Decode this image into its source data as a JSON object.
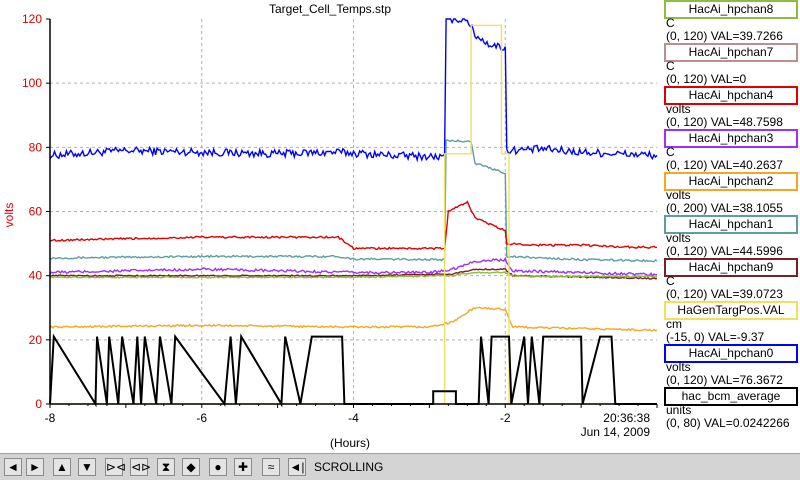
{
  "chart_data": {
    "type": "line",
    "title": "Target_Cell_Temps.stp",
    "xlabel": "(Hours)",
    "ylabel": "volts",
    "xlim": [
      -8,
      0
    ],
    "ylim": [
      0,
      120
    ],
    "x_ticks": [
      "-8",
      "-6",
      "-4",
      "-2"
    ],
    "y_ticks": [
      "0",
      "20",
      "40",
      "60",
      "80",
      "100",
      "120"
    ],
    "timestamp": "20:36:38",
    "date": "Jun 14, 2009",
    "grid": true,
    "series": [
      {
        "name": "HacAi_hpchan0",
        "color": "#0000ff",
        "noise": 1.2,
        "points": [
          [
            -8,
            77.5
          ],
          [
            -7,
            79
          ],
          [
            -6,
            78.5
          ],
          [
            -5,
            78
          ],
          [
            -4.2,
            78.5
          ],
          [
            -3.5,
            77.5
          ],
          [
            -2.8,
            77
          ],
          [
            -2.78,
            120
          ],
          [
            -2.5,
            120
          ],
          [
            -2.4,
            115
          ],
          [
            -2.2,
            112
          ],
          [
            -2.0,
            111
          ],
          [
            -1.98,
            79
          ],
          [
            -1.5,
            79.5
          ],
          [
            -1,
            78.5
          ],
          [
            -0.5,
            78
          ],
          [
            0,
            77.5
          ]
        ]
      },
      {
        "name": "HacAi_hpchan1",
        "color": "#5f9ea0",
        "noise": 0.3,
        "points": [
          [
            -8,
            45.5
          ],
          [
            -6,
            46
          ],
          [
            -4.2,
            46
          ],
          [
            -4.0,
            45.2
          ],
          [
            -2.8,
            45
          ],
          [
            -2.78,
            82
          ],
          [
            -2.45,
            82
          ],
          [
            -2.4,
            75
          ],
          [
            -2.0,
            72
          ],
          [
            -1.98,
            46
          ],
          [
            -1.5,
            45.5
          ],
          [
            -1,
            45
          ],
          [
            0,
            44.6
          ]
        ]
      },
      {
        "name": "HacAi_hpchan2",
        "color": "#f5a623",
        "noise": 0.3,
        "points": [
          [
            -8,
            24
          ],
          [
            -6,
            24.5
          ],
          [
            -4,
            24
          ],
          [
            -3,
            24
          ],
          [
            -2.7,
            25.5
          ],
          [
            -2.4,
            30
          ],
          [
            -2.0,
            29.5
          ],
          [
            -1.9,
            24
          ],
          [
            -1,
            23.5
          ],
          [
            0,
            23
          ]
        ]
      },
      {
        "name": "HacAi_hpchan3",
        "color": "#9b30ff",
        "noise": 0.4,
        "points": [
          [
            -8,
            41
          ],
          [
            -6,
            42
          ],
          [
            -4,
            41
          ],
          [
            -3,
            41
          ],
          [
            -2.7,
            42
          ],
          [
            -2.4,
            44.5
          ],
          [
            -2.0,
            45
          ],
          [
            -1.9,
            41.5
          ],
          [
            -1,
            41
          ],
          [
            0,
            40.3
          ]
        ]
      },
      {
        "name": "HacAi_hpchan4",
        "color": "#e00000",
        "noise": 0.3,
        "points": [
          [
            -8,
            51
          ],
          [
            -6,
            52
          ],
          [
            -4.2,
            52
          ],
          [
            -4.0,
            48.5
          ],
          [
            -2.8,
            48.5
          ],
          [
            -2.75,
            60
          ],
          [
            -2.5,
            63
          ],
          [
            -2.4,
            58
          ],
          [
            -2.1,
            55
          ],
          [
            -2.0,
            54
          ],
          [
            -1.98,
            50
          ],
          [
            -1.5,
            49.5
          ],
          [
            -1,
            49.5
          ],
          [
            -0.5,
            49
          ],
          [
            0,
            48.8
          ]
        ]
      },
      {
        "name": "HacAi_hpchan9",
        "color": "#7a2020",
        "noise": 0.2,
        "points": [
          [
            -8,
            40
          ],
          [
            -4,
            40
          ],
          [
            -2.7,
            40.5
          ],
          [
            -2.4,
            42
          ],
          [
            -2.0,
            42
          ],
          [
            -1.9,
            40
          ],
          [
            0,
            39.1
          ]
        ]
      },
      {
        "name": "HacAi_hpchan8",
        "color": "#8fbc3f",
        "noise": 0.2,
        "points": [
          [
            -8,
            39.5
          ],
          [
            -4,
            39.5
          ],
          [
            -2.7,
            40
          ],
          [
            -2.4,
            41
          ],
          [
            -2.0,
            41
          ],
          [
            -1.9,
            39.8
          ],
          [
            0,
            39.7
          ]
        ]
      },
      {
        "name": "HaGenTargPos.VAL",
        "color": "#f0e060",
        "noise": 0,
        "points": [
          [
            -8,
            0
          ],
          [
            -2.8,
            0
          ],
          [
            -2.8,
            78
          ],
          [
            -2.45,
            78
          ],
          [
            -2.45,
            118
          ],
          [
            -2.05,
            118
          ],
          [
            -2.05,
            78
          ],
          [
            -1.95,
            78
          ],
          [
            -1.95,
            0
          ],
          [
            0,
            0
          ]
        ]
      },
      {
        "name": "hac_bcm_average",
        "color": "#000000",
        "noise": 0,
        "steps": [
          [
            -8,
            0
          ],
          [
            -7.95,
            21
          ],
          [
            -7.4,
            0
          ],
          [
            -7.38,
            21
          ],
          [
            -7.25,
            0
          ],
          [
            -7.22,
            21
          ],
          [
            -7.1,
            0
          ],
          [
            -7.05,
            21
          ],
          [
            -6.9,
            0
          ],
          [
            -6.85,
            21
          ],
          [
            -6.8,
            0
          ],
          [
            -6.75,
            21
          ],
          [
            -6.6,
            0
          ],
          [
            -6.55,
            21
          ],
          [
            -6.4,
            0
          ],
          [
            -6.35,
            21
          ],
          [
            -5.7,
            0
          ],
          [
            -5.62,
            21
          ],
          [
            -5.55,
            0
          ],
          [
            -5.48,
            21
          ],
          [
            -4.95,
            0
          ],
          [
            -4.9,
            21
          ],
          [
            -4.7,
            0
          ],
          [
            -4.55,
            21
          ],
          [
            -4.15,
            21
          ],
          [
            -4.12,
            0
          ],
          [
            -2.95,
            0
          ],
          [
            -2.95,
            4
          ],
          [
            -2.65,
            4
          ],
          [
            -2.65,
            0
          ],
          [
            -2.35,
            0
          ],
          [
            -2.32,
            21
          ],
          [
            -2.22,
            0
          ],
          [
            -2.18,
            21
          ],
          [
            -1.95,
            21
          ],
          [
            -1.92,
            0
          ],
          [
            -1.75,
            21
          ],
          [
            -1.7,
            0
          ],
          [
            -1.65,
            21
          ],
          [
            -1.55,
            0
          ],
          [
            -1.5,
            21
          ],
          [
            -1.0,
            21
          ],
          [
            -0.98,
            0
          ],
          [
            -0.75,
            21
          ],
          [
            -0.6,
            21
          ],
          [
            -0.55,
            0
          ],
          [
            0,
            0
          ]
        ]
      }
    ]
  },
  "legend": [
    {
      "name": "HacAi_hpchan8",
      "color": "#8fbc3f",
      "unit": "C",
      "value": "(0, 120) VAL=39.7266"
    },
    {
      "name": "HacAi_hpchan7",
      "color": "#bc8f8f",
      "unit": "C",
      "value": "(0, 120) VAL=0"
    },
    {
      "name": "HacAi_hpchan4",
      "color": "#e00000",
      "unit": "volts",
      "value": "(0, 120) VAL=48.7598"
    },
    {
      "name": "HacAi_hpchan3",
      "color": "#9b30ff",
      "unit": "C",
      "value": "(0, 120) VAL=40.2637"
    },
    {
      "name": "HacAi_hpchan2",
      "color": "#f5a623",
      "unit": "volts",
      "value": "(0, 200) VAL=38.1055"
    },
    {
      "name": "HacAi_hpchan1",
      "color": "#5f9ea0",
      "unit": "volts",
      "value": "(0, 120) VAL=44.5996"
    },
    {
      "name": "HacAi_hpchan9",
      "color": "#7a2020",
      "unit": "C",
      "value": "(0, 120) VAL=39.0723"
    },
    {
      "name": "HaGenTargPos.VAL",
      "color": "#f0e060",
      "unit": "cm",
      "value": "(-15, 0) VAL=-9.37"
    },
    {
      "name": "HacAi_hpchan0",
      "color": "#0000ff",
      "unit": "volts",
      "value": "(0, 120) VAL=76.3672"
    },
    {
      "name": "hac_bcm_average",
      "color": "#000000",
      "unit": "units",
      "value": "(0, 80) VAL=0.0242266"
    }
  ],
  "toolbar": {
    "buttons": [
      {
        "name": "scroll-left-button",
        "glyph": "◄"
      },
      {
        "name": "scroll-right-button",
        "glyph": "►"
      },
      {
        "name": "scroll-up-button",
        "glyph": "▲"
      },
      {
        "name": "scroll-down-button",
        "glyph": "▼"
      },
      {
        "name": "zoom-in-x-button",
        "glyph": "⊳⊲"
      },
      {
        "name": "zoom-out-x-button",
        "glyph": "⊲⊳"
      },
      {
        "name": "zoom-in-y-button",
        "glyph": "⧗"
      },
      {
        "name": "zoom-out-y-button",
        "glyph": "◆"
      },
      {
        "name": "record-button",
        "glyph": "●"
      },
      {
        "name": "add-button",
        "glyph": "✚"
      },
      {
        "name": "graph-button",
        "glyph": "≈"
      },
      {
        "name": "back-button",
        "glyph": "◄|"
      }
    ],
    "status": "SCROLLING"
  }
}
